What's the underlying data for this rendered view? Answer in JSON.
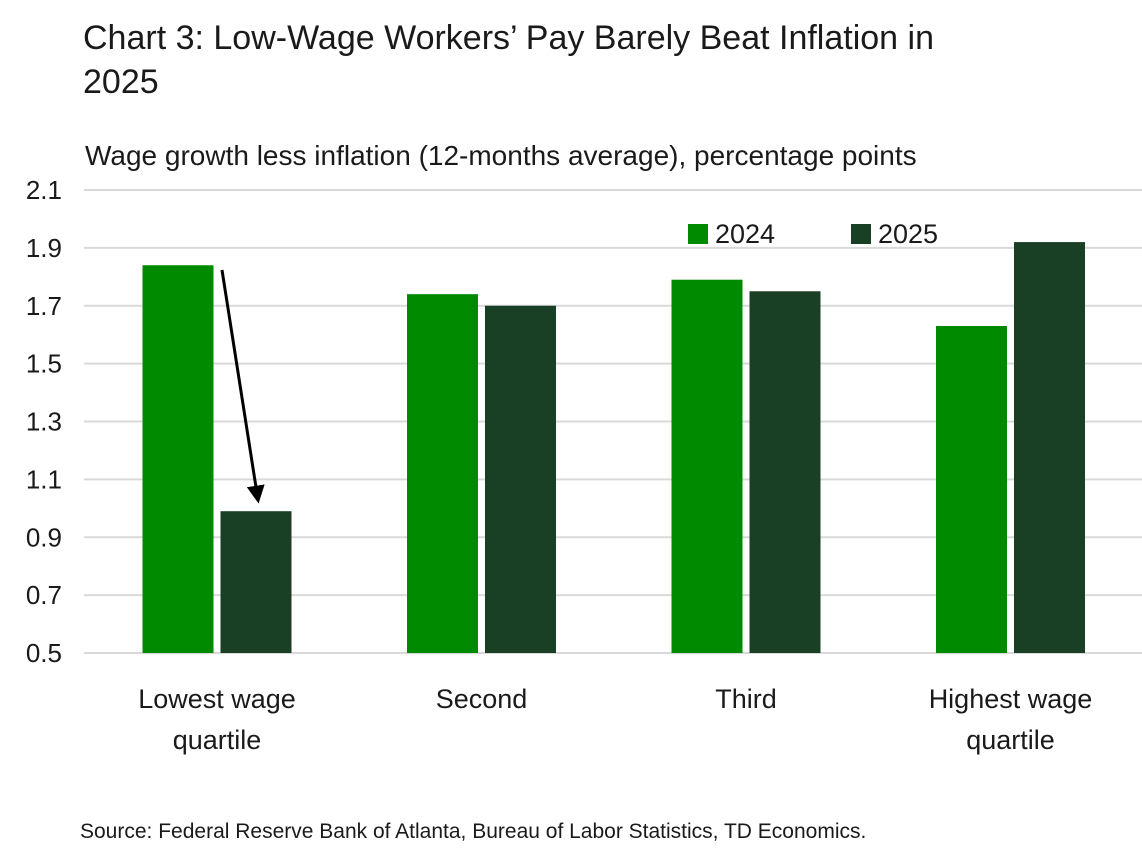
{
  "title": "Chart 3: Low-Wage Workers’ Pay Barely Beat Inflation in 2025",
  "source": "Source: Federal Reserve Bank of Atlanta, Bureau of Labor Statistics, TD Economics.",
  "chart_data": {
    "type": "bar",
    "title": "Chart 3: Low-Wage Workers’ Pay Barely Beat Inflation in 2025",
    "subtitle": "Wage growth less inflation (12-months average), percentage points",
    "categories": [
      [
        "Lowest wage",
        "quartile"
      ],
      [
        "Second"
      ],
      [
        "Third"
      ],
      [
        "Highest wage",
        "quartile"
      ]
    ],
    "series": [
      {
        "name": "2024",
        "color": "#008a00",
        "values": [
          1.84,
          1.74,
          1.79,
          1.63
        ]
      },
      {
        "name": "2025",
        "color": "#193f24",
        "values": [
          0.99,
          1.7,
          1.75,
          1.92
        ]
      }
    ],
    "ylim": [
      0.5,
      2.1
    ],
    "yticks": [
      "0.5",
      "0.7",
      "0.9",
      "1.1",
      "1.3",
      "1.5",
      "1.7",
      "1.9",
      "2.1"
    ],
    "grid": true,
    "legend": "top-right",
    "annotation": "arrow from Lowest wage quartile 2024 bar down to 2025 bar"
  }
}
